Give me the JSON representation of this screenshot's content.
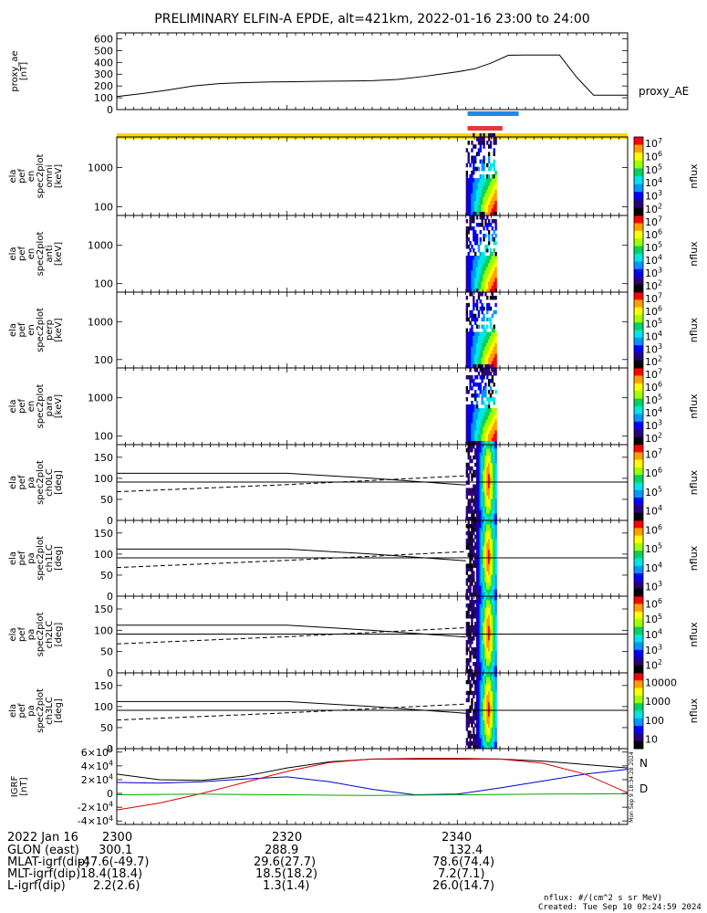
{
  "title": "PRELIMINARY ELFIN-A EPDE, alt=421km, 2022-01-16 23:00 to 24:00",
  "chart_data": {
    "type": "line",
    "time_ticks": [
      "2300",
      "2320",
      "2340"
    ],
    "panels": [
      {
        "id": "proxy_ae",
        "type": "line",
        "ylabel": [
          "proxy_ae",
          "[nT]"
        ],
        "yticks": [
          "0",
          "100",
          "200",
          "300",
          "400",
          "500",
          "600"
        ],
        "ylim": [
          0,
          650
        ],
        "legend": "proxy_AE",
        "series": [
          {
            "name": "proxy_AE",
            "x": [
              0,
              3,
              6,
              9,
              12,
              15,
              18,
              21,
              24,
              27,
              30,
              33,
              36,
              38,
              40,
              42,
              44,
              46,
              48,
              50,
              52,
              54,
              56,
              58,
              60
            ],
            "y": [
              110,
              135,
              165,
              200,
              220,
              228,
              234,
              236,
              240,
              242,
              245,
              255,
              280,
              300,
              320,
              345,
              395,
              460,
              462,
              462,
              462,
              275,
              122,
              122,
              122
            ]
          }
        ]
      },
      {
        "id": "omni",
        "type": "heatmap",
        "ylabel": [
          "ela",
          "pef",
          "en",
          "spec2plot",
          "omni",
          "[keV]"
        ],
        "yticks": [
          "100",
          "1000"
        ],
        "ylim": [
          60,
          6000
        ],
        "yscale": "log",
        "colorbar": {
          "label": "nflux",
          "ticks": [
            "10^2",
            "10^3",
            "10^4",
            "10^5",
            "10^6",
            "10^7"
          ]
        }
      },
      {
        "id": "anti",
        "type": "heatmap",
        "ylabel": [
          "ela",
          "pef",
          "en",
          "spec2plot",
          "anti",
          "[keV]"
        ],
        "yticks": [
          "100",
          "1000"
        ],
        "ylim": [
          60,
          6000
        ],
        "yscale": "log",
        "colorbar": {
          "label": "nflux",
          "ticks": [
            "10^2",
            "10^3",
            "10^4",
            "10^5",
            "10^6",
            "10^7"
          ]
        }
      },
      {
        "id": "perp",
        "type": "heatmap",
        "ylabel": [
          "ela",
          "pef",
          "en",
          "spec2plot",
          "perp",
          "[keV]"
        ],
        "yticks": [
          "100",
          "1000"
        ],
        "ylim": [
          60,
          6000
        ],
        "yscale": "log",
        "colorbar": {
          "label": "nflux",
          "ticks": [
            "10^2",
            "10^3",
            "10^4",
            "10^5",
            "10^6",
            "10^7"
          ]
        }
      },
      {
        "id": "para",
        "type": "heatmap",
        "ylabel": [
          "ela",
          "pef",
          "en",
          "spec2plot",
          "para",
          "[keV]"
        ],
        "yticks": [
          "100",
          "1000"
        ],
        "ylim": [
          60,
          6000
        ],
        "yscale": "log",
        "colorbar": {
          "label": "nflux",
          "ticks": [
            "10^2",
            "10^3",
            "10^4",
            "10^5",
            "10^6",
            "10^7"
          ]
        }
      },
      {
        "id": "ch0LC",
        "type": "heatmap",
        "ylabel": [
          "ela",
          "pef",
          "pa",
          "spec2plot",
          "ch0LC",
          "[deg]"
        ],
        "yticks": [
          "0",
          "50",
          "100",
          "150"
        ],
        "ylim": [
          0,
          180
        ],
        "colorbar": {
          "label": "nflux",
          "ticks": [
            "10^4",
            "10^5",
            "10^6",
            "10^7"
          ]
        }
      },
      {
        "id": "ch1LC",
        "type": "heatmap",
        "ylabel": [
          "ela",
          "pef",
          "pa",
          "spec2plot",
          "ch1LC",
          "[deg]"
        ],
        "yticks": [
          "0",
          "50",
          "100",
          "150"
        ],
        "ylim": [
          0,
          180
        ],
        "colorbar": {
          "label": "nflux",
          "ticks": [
            "10^3",
            "10^4",
            "10^5",
            "10^6"
          ]
        }
      },
      {
        "id": "ch2LC",
        "type": "heatmap",
        "ylabel": [
          "ela",
          "pef",
          "pa",
          "spec2plot",
          "ch2LC",
          "[deg]"
        ],
        "yticks": [
          "0",
          "50",
          "100",
          "150"
        ],
        "ylim": [
          0,
          180
        ],
        "colorbar": {
          "label": "nflux",
          "ticks": [
            "10^2",
            "10^3",
            "10^4",
            "10^5",
            "10^6"
          ]
        }
      },
      {
        "id": "ch3LC",
        "type": "heatmap",
        "ylabel": [
          "ela",
          "pef",
          "pa",
          "spec2plot",
          "ch3LC",
          "[deg]"
        ],
        "yticks": [
          "0",
          "50",
          "100",
          "150"
        ],
        "ylim": [
          0,
          180
        ],
        "colorbar": {
          "label": "nflux",
          "ticks": [
            "10",
            "100",
            "1000",
            "10000"
          ]
        }
      },
      {
        "id": "igrf",
        "type": "line",
        "ylabel": [
          "IGRF",
          "[nT]"
        ],
        "yticks": [
          "-4×10^4",
          "-2×10^4",
          "0",
          "2×10^4",
          "4×10^4",
          "6×10^4"
        ],
        "ylim": [
          -45000,
          65000
        ],
        "legend": [
          "N",
          "D"
        ],
        "series": [
          {
            "color": "#000000",
            "x": [
              0,
              5,
              10,
              15,
              20,
              25,
              30,
              35,
              40,
              45,
              50,
              55,
              60
            ],
            "y": [
              28000,
              20000,
              19000,
              25000,
              37000,
              46000,
              50000,
              50000,
              50000,
              50000,
              47000,
              42000,
              37000
            ]
          },
          {
            "color": "#0000cc",
            "x": [
              0,
              5,
              10,
              15,
              20,
              25,
              30,
              35,
              40,
              45,
              50,
              55,
              60
            ],
            "y": [
              16000,
              15000,
              17000,
              21000,
              24000,
              17000,
              6000,
              -2000,
              -1000,
              8000,
              18000,
              28000,
              35000
            ]
          },
          {
            "color": "#dd0000",
            "x": [
              0,
              5,
              10,
              15,
              20,
              25,
              30,
              35,
              40,
              45,
              50,
              55,
              60
            ],
            "y": [
              -24000,
              -14000,
              0,
              16000,
              32000,
              45000,
              50000,
              51000,
              51000,
              50000,
              44000,
              28000,
              1000
            ]
          },
          {
            "color": "#00aa00",
            "x": [
              0,
              10,
              20,
              30,
              40,
              50,
              60
            ],
            "y": [
              -2000,
              -1000,
              -2000,
              -3000,
              -2000,
              -1000,
              -500
            ]
          }
        ]
      }
    ],
    "annotations": {
      "blue_bar": [
        41.2,
        47.2
      ],
      "red_bar": [
        41.2,
        45.3
      ],
      "yellow_bar": [
        0,
        60
      ]
    },
    "side_label": "Mon Sep 9 18:34:28 2024",
    "ephemeris": {
      "date": "2022 Jan 16",
      "rows": [
        {
          "label": "GLON (east)",
          "values": [
            "300.1",
            "288.9",
            "132.4"
          ]
        },
        {
          "label": "MLAT-igrf(dip)",
          "values": [
            "-47.6(-49.7)",
            "29.6(27.7)",
            "78.6(74.4)"
          ]
        },
        {
          "label": "MLT-igrf(dip)",
          "values": [
            "18.4(18.4)",
            "18.5(18.2)",
            "7.2(7.1)"
          ]
        },
        {
          "label": "L-igrf(dip)",
          "values": [
            "2.2(2.6)",
            "1.3(1.4)",
            "26.0(14.7)"
          ]
        }
      ]
    }
  },
  "footer": {
    "units": "nflux: #/(cm^2 s sr MeV)",
    "created": "Created: Tue Sep 10 02:24:59 2024"
  }
}
